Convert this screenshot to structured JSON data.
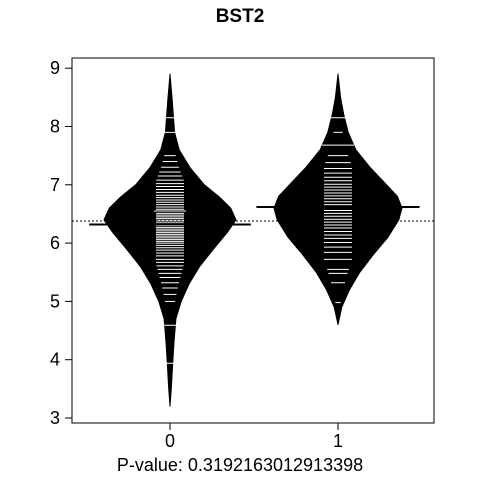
{
  "chart_data": {
    "type": "beanplot",
    "title": "BST2",
    "xlabel": "P-value: 0.3192163012913398",
    "ylabel": "",
    "categories": [
      "0",
      "1"
    ],
    "ylim": [
      3,
      9
    ],
    "yticks": [
      3,
      4,
      5,
      6,
      7,
      8,
      9
    ],
    "overall_mean": 6.38,
    "colors": {
      "bean": "#000000",
      "lines": "#ffffff",
      "axis": "#000000"
    },
    "series": [
      {
        "category": "0",
        "mean": 6.32,
        "density_profile": [
          [
            3.2,
            0.0
          ],
          [
            3.5,
            0.02
          ],
          [
            3.9,
            0.04
          ],
          [
            4.3,
            0.06
          ],
          [
            4.7,
            0.09
          ],
          [
            5.0,
            0.17
          ],
          [
            5.3,
            0.29
          ],
          [
            5.6,
            0.45
          ],
          [
            5.9,
            0.66
          ],
          [
            6.2,
            0.88
          ],
          [
            6.4,
            1.0
          ],
          [
            6.6,
            0.92
          ],
          [
            6.8,
            0.74
          ],
          [
            7.0,
            0.52
          ],
          [
            7.3,
            0.3
          ],
          [
            7.6,
            0.14
          ],
          [
            7.9,
            0.07
          ],
          [
            8.2,
            0.05
          ],
          [
            8.5,
            0.03
          ],
          [
            8.9,
            0.0
          ]
        ],
        "observations": [
          3.94,
          4.59,
          5.0,
          5.12,
          5.23,
          5.32,
          5.41,
          5.48,
          5.55,
          5.61,
          5.67,
          5.72,
          5.78,
          5.83,
          5.88,
          5.92,
          5.96,
          6.0,
          6.03,
          6.06,
          6.09,
          6.12,
          6.15,
          6.18,
          6.21,
          6.24,
          6.27,
          6.3,
          6.33,
          6.36,
          6.39,
          6.42,
          6.45,
          6.48,
          6.51,
          6.55,
          6.58,
          6.62,
          6.66,
          6.7,
          6.74,
          6.78,
          6.82,
          6.87,
          6.92,
          6.97,
          7.02,
          7.08,
          7.15,
          7.22,
          7.3,
          7.4,
          7.5,
          7.9,
          8.15
        ],
        "wide_observations": [
          3.94,
          4.59,
          6.25,
          6.55,
          7.9,
          8.15
        ]
      },
      {
        "category": "1",
        "mean": 6.62,
        "density_profile": [
          [
            4.6,
            0.0
          ],
          [
            4.9,
            0.06
          ],
          [
            5.2,
            0.18
          ],
          [
            5.5,
            0.34
          ],
          [
            5.8,
            0.55
          ],
          [
            6.1,
            0.78
          ],
          [
            6.4,
            0.95
          ],
          [
            6.6,
            1.0
          ],
          [
            6.8,
            0.93
          ],
          [
            7.0,
            0.76
          ],
          [
            7.3,
            0.5
          ],
          [
            7.6,
            0.28
          ],
          [
            7.9,
            0.16
          ],
          [
            8.2,
            0.09
          ],
          [
            8.5,
            0.04
          ],
          [
            8.9,
            0.0
          ]
        ],
        "observations": [
          4.98,
          5.32,
          5.48,
          5.55,
          5.72,
          5.84,
          5.93,
          6.01,
          6.08,
          6.14,
          6.2,
          6.26,
          6.31,
          6.36,
          6.41,
          6.46,
          6.51,
          6.56,
          6.61,
          6.66,
          6.71,
          6.76,
          6.81,
          6.86,
          6.91,
          6.96,
          7.01,
          7.07,
          7.13,
          7.2,
          7.28,
          7.38,
          7.5,
          7.68,
          7.9,
          8.15
        ],
        "wide_observations": [
          7.68,
          8.15
        ]
      }
    ]
  }
}
